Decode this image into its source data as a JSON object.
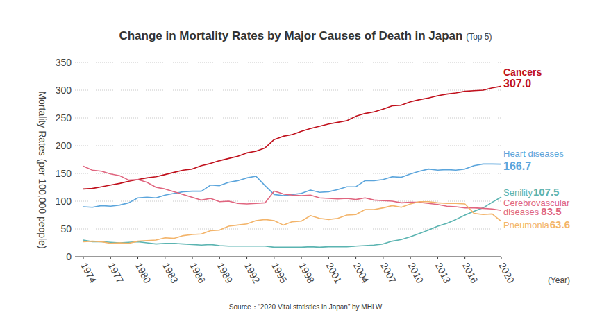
{
  "chart_data": {
    "type": "line",
    "title": "Change in Mortality Rates by Major Causes of Death in Japan",
    "subtitle": "(Top 5)",
    "y_label": "Mortality Rates (per 100,000 people)",
    "x_label": "(Year)",
    "source": "Source：“2020 Vital statistics in Japan” by MHLW",
    "x": [
      1974,
      1975,
      1976,
      1977,
      1978,
      1979,
      1980,
      1981,
      1982,
      1983,
      1984,
      1985,
      1986,
      1987,
      1988,
      1989,
      1990,
      1991,
      1992,
      1993,
      1994,
      1995,
      1996,
      1997,
      1998,
      1999,
      2000,
      2001,
      2002,
      2003,
      2004,
      2005,
      2006,
      2007,
      2008,
      2009,
      2010,
      2011,
      2012,
      2013,
      2014,
      2015,
      2016,
      2017,
      2018,
      2019,
      2020
    ],
    "xlim": [
      1974,
      2020
    ],
    "xticks": [
      1974,
      1977,
      1980,
      1983,
      1986,
      1989,
      1992,
      1995,
      1998,
      2001,
      2004,
      2007,
      2010,
      2013,
      2016,
      2020
    ],
    "ylim": [
      0,
      350
    ],
    "yticks": [
      0,
      50,
      100,
      150,
      200,
      250,
      300,
      350
    ],
    "grid": true,
    "series": [
      {
        "name": "Cancers",
        "color": "#c0101c",
        "values": [
          122,
          123,
          126,
          129,
          132,
          136,
          139,
          142,
          144,
          148,
          152,
          156,
          158,
          164,
          168,
          173,
          177,
          181,
          187,
          190,
          196,
          211,
          217,
          220,
          226,
          231,
          235,
          239,
          242,
          245,
          253,
          258,
          261,
          266,
          272,
          273,
          279,
          283,
          286,
          290,
          293,
          295,
          298,
          299,
          300,
          304,
          307.0
        ],
        "value_labels": [
          null,
          null,
          null,
          null,
          null,
          null,
          null,
          null,
          null,
          null,
          null,
          null,
          null,
          null,
          null,
          null,
          null,
          null,
          null,
          null,
          null,
          null,
          null,
          null,
          null,
          null,
          null,
          null,
          null,
          null,
          null,
          null,
          null,
          null,
          null,
          null,
          null,
          null,
          null,
          null,
          null,
          null,
          null,
          null,
          null,
          null,
          "307.0"
        ]
      },
      {
        "name": "Heart diseases",
        "color": "#5ba5dc",
        "values": [
          90,
          89,
          92,
          91,
          93,
          97,
          106,
          107,
          106,
          111,
          114,
          117,
          118,
          118,
          129,
          128,
          134,
          137,
          142,
          145,
          128,
          112,
          110,
          112,
          114,
          120,
          116,
          117,
          121,
          126,
          126,
          137,
          137,
          139,
          144,
          143,
          149,
          154,
          158,
          156,
          157,
          156,
          158,
          164,
          167,
          167,
          166.7
        ],
        "value_labels": [
          null,
          null,
          null,
          null,
          null,
          null,
          null,
          null,
          null,
          null,
          null,
          null,
          null,
          null,
          null,
          null,
          null,
          null,
          null,
          null,
          null,
          null,
          null,
          null,
          null,
          null,
          null,
          null,
          null,
          null,
          null,
          null,
          null,
          null,
          null,
          null,
          null,
          null,
          null,
          null,
          null,
          null,
          null,
          null,
          null,
          null,
          "166.7"
        ]
      },
      {
        "name": "Senility",
        "color": "#5bb4b1",
        "values": [
          30,
          27,
          27,
          26,
          25,
          26,
          27,
          25,
          23,
          24,
          24,
          23,
          22,
          21,
          22,
          20,
          19,
          19,
          19,
          19,
          19,
          17,
          17,
          17,
          17,
          18,
          17,
          18,
          18,
          18,
          19,
          20,
          21,
          23,
          28,
          31,
          36,
          42,
          48,
          55,
          60,
          67,
          75,
          82,
          88,
          98,
          107.5
        ],
        "value_labels": [
          null,
          null,
          null,
          null,
          null,
          null,
          null,
          null,
          null,
          null,
          null,
          null,
          null,
          null,
          null,
          null,
          null,
          null,
          null,
          null,
          null,
          null,
          null,
          null,
          null,
          null,
          null,
          null,
          null,
          null,
          null,
          null,
          null,
          null,
          null,
          null,
          null,
          null,
          null,
          null,
          null,
          null,
          null,
          null,
          null,
          null,
          "107.5"
        ]
      },
      {
        "name": "Cerebrovascular diseases",
        "color": "#e0657f",
        "values": [
          163,
          156,
          154,
          149,
          146,
          138,
          139,
          134,
          125,
          122,
          117,
          112,
          107,
          102,
          105,
          99,
          100,
          96,
          95,
          96,
          97,
          118,
          113,
          111,
          110,
          111,
          106,
          105,
          104,
          105,
          103,
          106,
          102,
          101,
          100,
          97,
          98,
          98,
          96,
          94,
          91,
          90,
          88,
          88,
          87,
          86,
          83.5
        ],
        "value_labels": [
          null,
          null,
          null,
          null,
          null,
          null,
          null,
          null,
          null,
          null,
          null,
          null,
          null,
          null,
          null,
          null,
          null,
          null,
          null,
          null,
          null,
          null,
          null,
          null,
          null,
          null,
          null,
          null,
          null,
          null,
          null,
          null,
          null,
          null,
          null,
          null,
          null,
          null,
          null,
          null,
          null,
          null,
          null,
          null,
          null,
          null,
          "83.5"
        ]
      },
      {
        "name": "Pneumonia",
        "color": "#f3b46a",
        "values": [
          27,
          28,
          27,
          24,
          25,
          24,
          28,
          29,
          30,
          34,
          33,
          38,
          40,
          41,
          47,
          48,
          55,
          57,
          59,
          65,
          67,
          65,
          57,
          63,
          64,
          74,
          69,
          67,
          69,
          75,
          76,
          85,
          85,
          88,
          92,
          89,
          95,
          99,
          99,
          97,
          96,
          96,
          95,
          78,
          76,
          77,
          63.6
        ],
        "value_labels": [
          null,
          null,
          null,
          null,
          null,
          null,
          null,
          null,
          null,
          null,
          null,
          null,
          null,
          null,
          null,
          null,
          null,
          null,
          null,
          null,
          null,
          null,
          null,
          null,
          null,
          null,
          null,
          null,
          null,
          null,
          null,
          null,
          null,
          null,
          null,
          null,
          null,
          null,
          null,
          null,
          null,
          null,
          null,
          null,
          null,
          null,
          "63.6"
        ]
      }
    ]
  }
}
